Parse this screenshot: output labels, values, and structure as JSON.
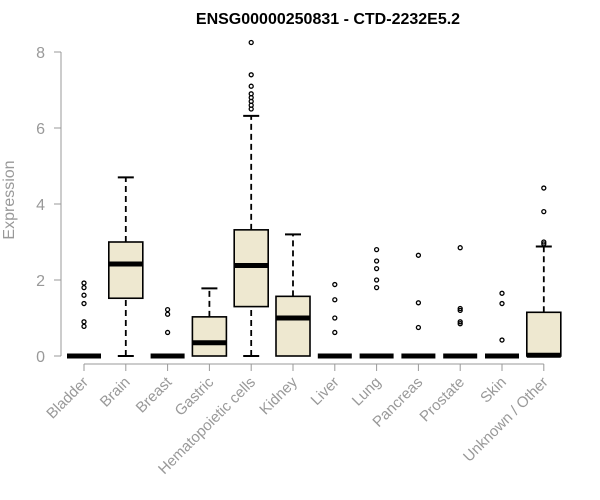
{
  "chart_data": {
    "type": "box",
    "title": "ENSG00000250831 - CTD-2232E5.2",
    "xlabel": "",
    "ylabel": "Expression",
    "ylim": [
      0,
      8.4
    ],
    "yticks": [
      0,
      2,
      4,
      6,
      8
    ],
    "grid": false,
    "box_color": "#EEE8D0",
    "categories": [
      "Bladder",
      "Brain",
      "Breast",
      "Gastric",
      "Hematopoietic cells",
      "Kidney",
      "Liver",
      "Lung",
      "Pancreas",
      "Prostate",
      "Skin",
      "Unknown / Other"
    ],
    "boxes": [
      {
        "name": "Bladder",
        "min": 0,
        "q1": 0,
        "median": 0,
        "q3": 0,
        "max": 0,
        "outliers": [
          0.78,
          0.9,
          1.38,
          1.6,
          1.8,
          1.92
        ]
      },
      {
        "name": "Brain",
        "min": 0,
        "q1": 1.52,
        "median": 2.42,
        "q3": 3.0,
        "max": 4.7,
        "outliers": []
      },
      {
        "name": "Breast",
        "min": 0,
        "q1": 0,
        "median": 0,
        "q3": 0,
        "max": 0,
        "outliers": [
          0.62,
          1.1,
          1.22
        ]
      },
      {
        "name": "Gastric",
        "min": 0,
        "q1": 0,
        "median": 0.35,
        "q3": 1.03,
        "max": 1.78,
        "outliers": []
      },
      {
        "name": "Hematopoietic cells",
        "min": 0,
        "q1": 1.3,
        "median": 2.38,
        "q3": 3.32,
        "max": 6.32,
        "outliers": [
          6.5,
          6.6,
          6.7,
          6.8,
          6.9,
          7.1,
          7.4,
          8.25
        ]
      },
      {
        "name": "Kidney",
        "min": 0,
        "q1": 0,
        "median": 1.0,
        "q3": 1.57,
        "max": 3.2,
        "outliers": []
      },
      {
        "name": "Liver",
        "min": 0,
        "q1": 0,
        "median": 0,
        "q3": 0,
        "max": 0,
        "outliers": [
          0.62,
          1.0,
          1.48,
          1.88
        ]
      },
      {
        "name": "Lung",
        "min": 0,
        "q1": 0,
        "median": 0,
        "q3": 0,
        "max": 0,
        "outliers": [
          1.8,
          2.0,
          2.3,
          2.5,
          2.8
        ]
      },
      {
        "name": "Pancreas",
        "min": 0,
        "q1": 0,
        "median": 0,
        "q3": 0,
        "max": 0,
        "outliers": [
          0.75,
          1.4,
          2.65
        ]
      },
      {
        "name": "Prostate",
        "min": 0,
        "q1": 0,
        "median": 0,
        "q3": 0,
        "max": 0,
        "outliers": [
          0.85,
          0.9,
          1.2,
          1.25,
          2.85
        ]
      },
      {
        "name": "Skin",
        "min": 0,
        "q1": 0,
        "median": 0,
        "q3": 0,
        "max": 0,
        "outliers": [
          0.42,
          1.38,
          1.65
        ]
      },
      {
        "name": "Unknown / Other",
        "min": 0,
        "q1": 0,
        "median": 0.02,
        "q3": 1.15,
        "max": 2.88,
        "outliers": [
          2.95,
          3.0,
          3.8,
          4.42
        ]
      }
    ]
  }
}
